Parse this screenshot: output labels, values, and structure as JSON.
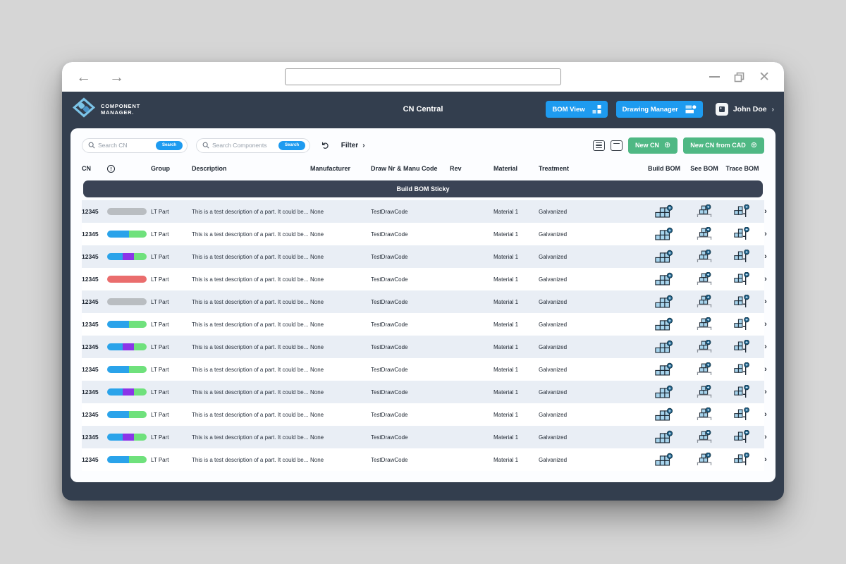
{
  "browser": {
    "url_value": "",
    "back_label": "←",
    "forward_label": "→"
  },
  "app_header": {
    "brand_line1": "COMPONENT",
    "brand_line2": "MANAGER.",
    "title": "CN Central",
    "bom_view_label": "BOM View",
    "drawing_manager_label": "Drawing Manager",
    "user_name": "John Doe",
    "user_chevron": "›"
  },
  "toolbar": {
    "search_cn_placeholder": "Search CN",
    "search_components_placeholder": "Search Components",
    "search_button_label": "Search",
    "refresh_glyph": "↻",
    "filter_label": "Filter",
    "filter_chevron": "›",
    "new_cn_label": "New CN",
    "new_cn_from_cad_label": "New CN from CAD",
    "plus_glyph": "⊕"
  },
  "table": {
    "columns": [
      "CN",
      "Group",
      "Description",
      "Manufacturer",
      "Draw Nr & Manu Code",
      "Rev",
      "Material",
      "Treatment",
      "Build BOM",
      "See BOM",
      "Trace BOM"
    ],
    "info_glyph": "!",
    "sticky_label": "Build BOM Sticky",
    "row_chevron": "›",
    "rows": [
      {
        "cn": "12345",
        "status_segments": [
          "gray"
        ],
        "group": "LT Part",
        "description": "This is a test description of a part. It could be...",
        "manufacturer": "None",
        "draw_code": "TestDrawCode",
        "rev": "",
        "material": "Material 1",
        "treatment": "Galvanized"
      },
      {
        "cn": "12345",
        "status_segments": [
          "blue",
          "green"
        ],
        "group": "LT Part",
        "description": "This is a test description of a part. It could be...",
        "manufacturer": "None",
        "draw_code": "TestDrawCode",
        "rev": "",
        "material": "Material 1",
        "treatment": "Galvanized"
      },
      {
        "cn": "12345",
        "status_segments": [
          "blue",
          "purple",
          "green"
        ],
        "group": "LT Part",
        "description": "This is a test description of a part. It could be...",
        "manufacturer": "None",
        "draw_code": "TestDrawCode",
        "rev": "",
        "material": "Material 1",
        "treatment": "Galvanized"
      },
      {
        "cn": "12345",
        "status_segments": [
          "red"
        ],
        "group": "LT Part",
        "description": "This is a test description of a part. It could be...",
        "manufacturer": "None",
        "draw_code": "TestDrawCode",
        "rev": "",
        "material": "Material 1",
        "treatment": "Galvanized"
      },
      {
        "cn": "12345",
        "status_segments": [
          "gray"
        ],
        "group": "LT Part",
        "description": "This is a test description of a part. It could be...",
        "manufacturer": "None",
        "draw_code": "TestDrawCode",
        "rev": "",
        "material": "Material 1",
        "treatment": "Galvanized"
      },
      {
        "cn": "12345",
        "status_segments": [
          "blue",
          "green"
        ],
        "group": "LT Part",
        "description": "This is a test description of a part. It could be...",
        "manufacturer": "None",
        "draw_code": "TestDrawCode",
        "rev": "",
        "material": "Material 1",
        "treatment": "Galvanized"
      },
      {
        "cn": "12345",
        "status_segments": [
          "blue",
          "purple",
          "green"
        ],
        "group": "LT Part",
        "description": "This is a test description of a part. It could be...",
        "manufacturer": "None",
        "draw_code": "TestDrawCode",
        "rev": "",
        "material": "Material 1",
        "treatment": "Galvanized"
      },
      {
        "cn": "12345",
        "status_segments": [
          "blue",
          "green"
        ],
        "group": "LT Part",
        "description": "This is a test description of a part. It could be...",
        "manufacturer": "None",
        "draw_code": "TestDrawCode",
        "rev": "",
        "material": "Material 1",
        "treatment": "Galvanized"
      },
      {
        "cn": "12345",
        "status_segments": [
          "blue",
          "purple",
          "green"
        ],
        "group": "LT Part",
        "description": "This is a test description of a part. It could be...",
        "manufacturer": "None",
        "draw_code": "TestDrawCode",
        "rev": "",
        "material": "Material 1",
        "treatment": "Galvanized"
      },
      {
        "cn": "12345",
        "status_segments": [
          "blue",
          "green"
        ],
        "group": "LT Part",
        "description": "This is a test description of a part. It could be...",
        "manufacturer": "None",
        "draw_code": "TestDrawCode",
        "rev": "",
        "material": "Material 1",
        "treatment": "Galvanized"
      },
      {
        "cn": "12345",
        "status_segments": [
          "blue",
          "purple",
          "green"
        ],
        "group": "LT Part",
        "description": "This is a test description of a part. It could be...",
        "manufacturer": "None",
        "draw_code": "TestDrawCode",
        "rev": "",
        "material": "Material 1",
        "treatment": "Galvanized"
      },
      {
        "cn": "12345",
        "status_segments": [
          "blue",
          "green"
        ],
        "group": "LT Part",
        "description": "This is a test description of a part. It could be...",
        "manufacturer": "None",
        "draw_code": "TestDrawCode",
        "rev": "",
        "material": "Material 1",
        "treatment": "Galvanized"
      }
    ]
  },
  "colors": {
    "accent_blue": "#1e9bf0",
    "accent_green": "#4fb884",
    "header_bg": "#333e4e",
    "sticky_bg": "#3a4355",
    "row_alt_bg": "#e9eef5",
    "pill_gray": "#b9bdc1",
    "pill_blue": "#2aa3ea",
    "pill_purple": "#8b35e8",
    "pill_green": "#6fe17c",
    "pill_red": "#ea6d6d",
    "icon_fill": "#a6d3ec",
    "icon_badge": "#1e5f86"
  }
}
